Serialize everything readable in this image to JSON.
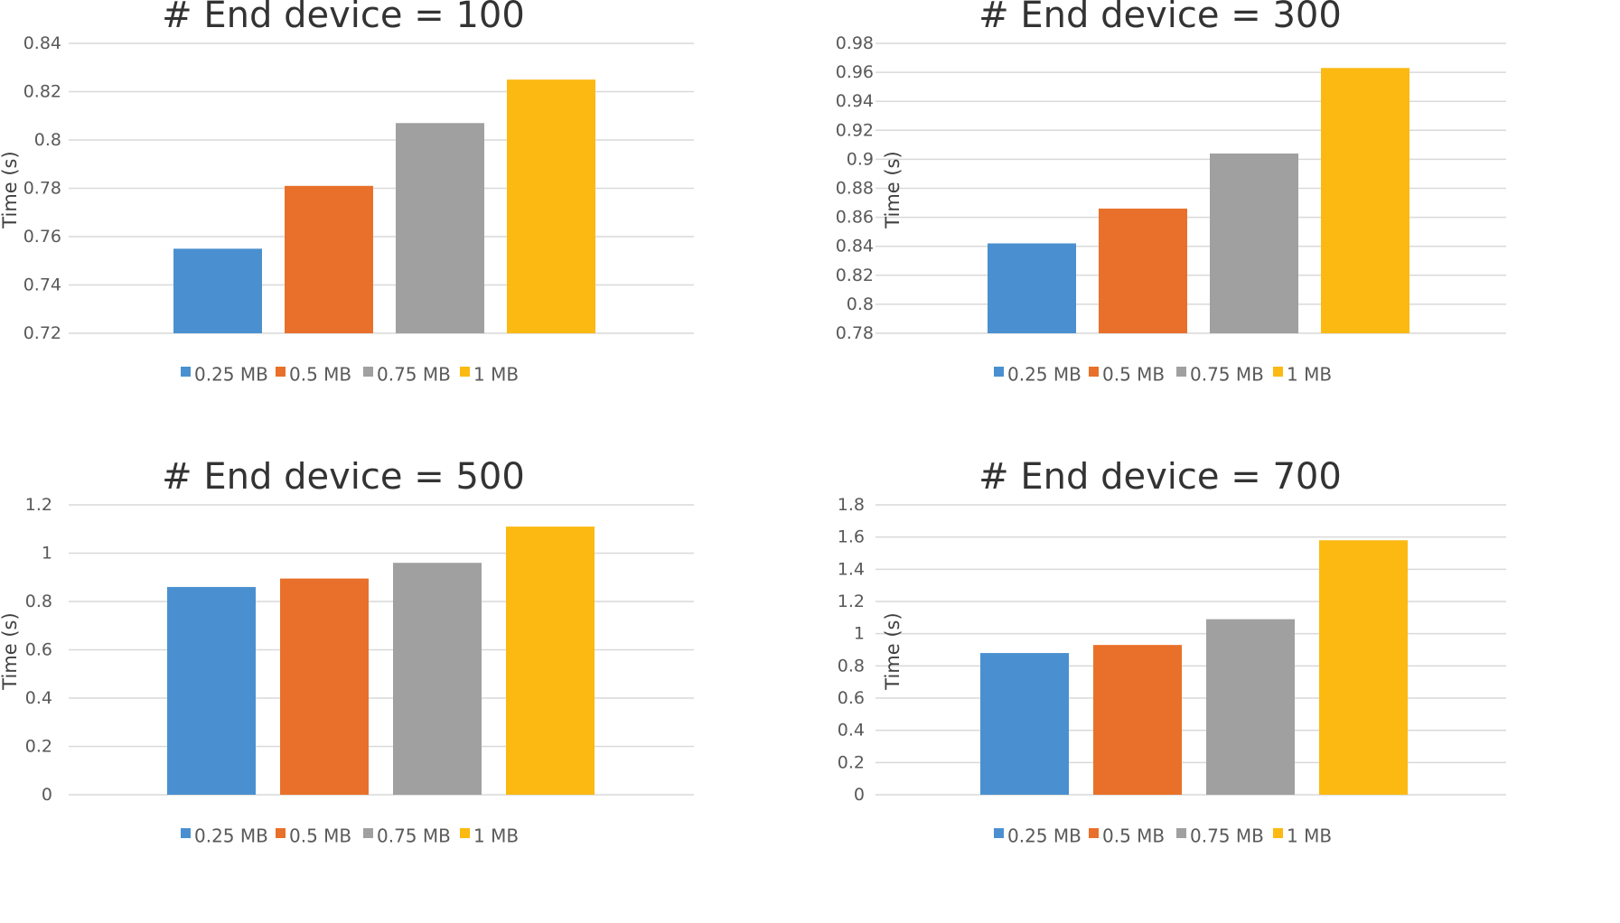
{
  "colors": {
    "0.25 MB": "#4a90d0",
    "0.5 MB": "#e8702a",
    "0.75 MB": "#a0a0a0",
    "1 MB": "#fbb912"
  },
  "chart_data": [
    {
      "type": "bar",
      "title": "# End device = 100",
      "ylabel": "Time (s)",
      "xlabel": "",
      "ylim": [
        0.72,
        0.84
      ],
      "yticks": [
        "0.72",
        "0.74",
        "0.76",
        "0.78",
        "0.8",
        "0.82",
        "0.84"
      ],
      "series": [
        {
          "name": "0.25 MB",
          "value": 0.755
        },
        {
          "name": "0.5 MB",
          "value": 0.781
        },
        {
          "name": "0.75 MB",
          "value": 0.807
        },
        {
          "name": "1 MB",
          "value": 0.825
        }
      ],
      "legend": [
        "0.25 MB",
        "0.5 MB",
        "0.75 MB",
        "1 MB"
      ]
    },
    {
      "type": "bar",
      "title": "# End device = 300",
      "ylabel": "Time (s)",
      "xlabel": "",
      "ylim": [
        0.78,
        0.98
      ],
      "yticks": [
        "0.78",
        "0.8",
        "0.82",
        "0.84",
        "0.86",
        "0.88",
        "0.9",
        "0.92",
        "0.94",
        "0.96",
        "0.98"
      ],
      "series": [
        {
          "name": "0.25 MB",
          "value": 0.842
        },
        {
          "name": "0.5 MB",
          "value": 0.866
        },
        {
          "name": "0.75 MB",
          "value": 0.904
        },
        {
          "name": "1 MB",
          "value": 0.963
        }
      ],
      "legend": [
        "0.25 MB",
        "0.5 MB",
        "0.75 MB",
        "1 MB"
      ]
    },
    {
      "type": "bar",
      "title": "# End device = 500",
      "ylabel": "Time (s)",
      "xlabel": "",
      "ylim": [
        0,
        1.2
      ],
      "yticks": [
        "0",
        "0.2",
        "0.4",
        "0.6",
        "0.8",
        "1",
        "1.2"
      ],
      "series": [
        {
          "name": "0.25 MB",
          "value": 0.86
        },
        {
          "name": "0.5 MB",
          "value": 0.895
        },
        {
          "name": "0.75 MB",
          "value": 0.96
        },
        {
          "name": "1 MB",
          "value": 1.11
        }
      ],
      "legend": [
        "0.25 MB",
        "0.5 MB",
        "0.75 MB",
        "1 MB"
      ]
    },
    {
      "type": "bar",
      "title": "# End device = 700",
      "ylabel": "Time (s)",
      "xlabel": "",
      "ylim": [
        0,
        1.8
      ],
      "yticks": [
        "0",
        "0.2",
        "0.4",
        "0.6",
        "0.8",
        "1",
        "1.2",
        "1.4",
        "1.6",
        "1.8"
      ],
      "series": [
        {
          "name": "0.25 MB",
          "value": 0.88
        },
        {
          "name": "0.5 MB",
          "value": 0.93
        },
        {
          "name": "0.75 MB",
          "value": 1.09
        },
        {
          "name": "1 MB",
          "value": 1.58
        }
      ],
      "legend": [
        "0.25 MB",
        "0.5 MB",
        "0.75 MB",
        "1 MB"
      ]
    }
  ]
}
